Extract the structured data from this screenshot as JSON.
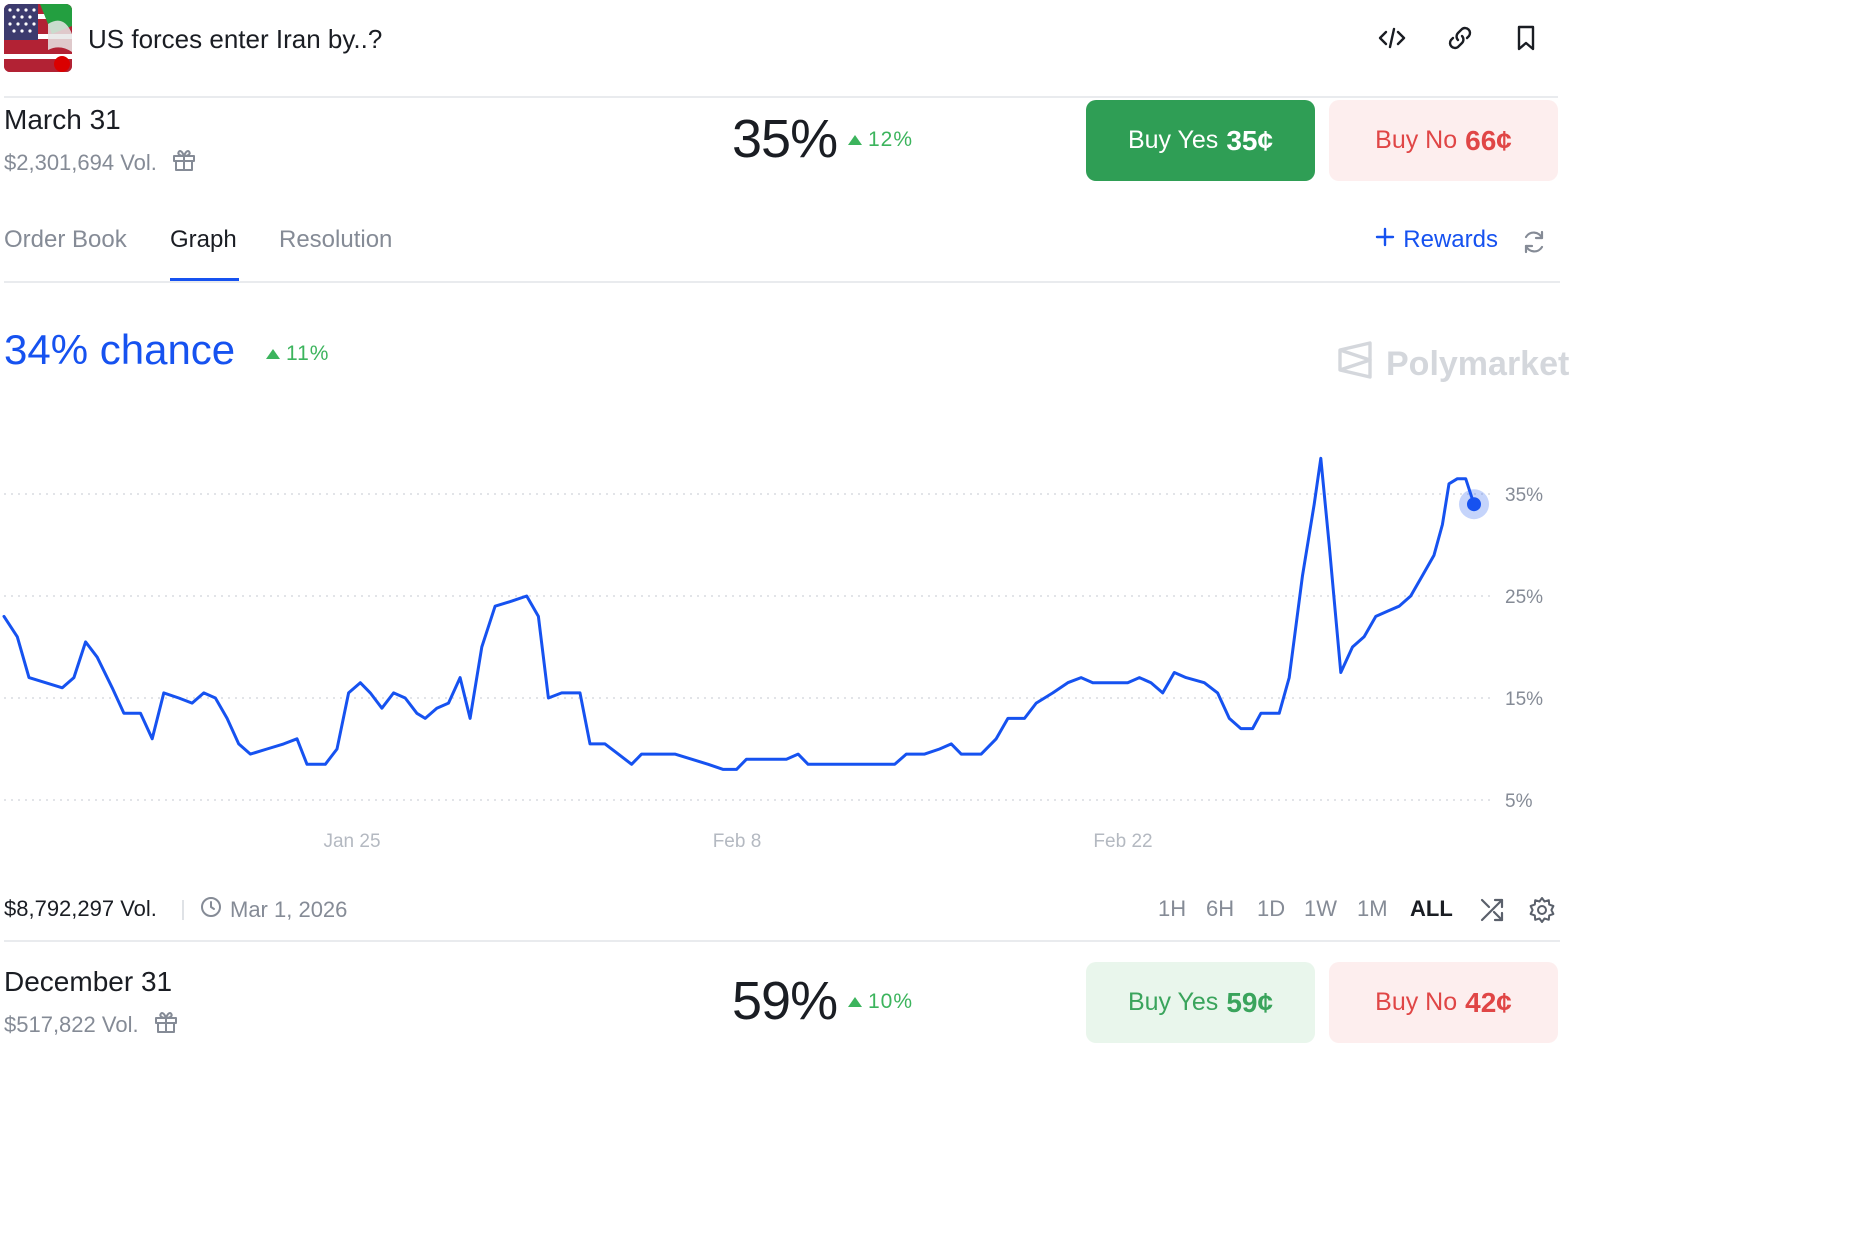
{
  "header": {
    "title": "US forces enter Iran by..?",
    "icons": [
      "embed-code-icon",
      "link-icon",
      "bookmark-icon"
    ]
  },
  "outcomes": [
    {
      "name": "March 31",
      "volume": "$2,301,694 Vol.",
      "probability": "35%",
      "delta": "12%",
      "buy_yes_label": "Buy Yes",
      "buy_yes_price": "35¢",
      "buy_no_label": "Buy No",
      "buy_no_price": "66¢"
    },
    {
      "name": "December 31",
      "volume": "$517,822 Vol.",
      "probability": "59%",
      "delta": "10%",
      "buy_yes_label": "Buy Yes",
      "buy_yes_price": "59¢",
      "buy_no_label": "Buy No",
      "buy_no_price": "42¢"
    }
  ],
  "tabs": [
    {
      "label": "Order Book",
      "active": false
    },
    {
      "label": "Graph",
      "active": true
    },
    {
      "label": "Resolution",
      "active": false
    }
  ],
  "rewards_label": "Rewards",
  "chart_header": {
    "chance": "34% chance",
    "delta": "11%",
    "watermark": "Polymarket"
  },
  "chart_data": {
    "type": "line",
    "x_ticks": [
      "Jan 25",
      "Feb 8",
      "Feb 22"
    ],
    "y_ticks": [
      "35%",
      "25%",
      "15%",
      "5%"
    ],
    "ylim": [
      3,
      40
    ],
    "grid": true,
    "color": "#1652f0",
    "series": [
      {
        "points": [
          [
            0,
            23
          ],
          [
            0.8,
            21
          ],
          [
            1.5,
            17
          ],
          [
            2.5,
            16.5
          ],
          [
            3.5,
            16
          ],
          [
            4.2,
            17
          ],
          [
            4.9,
            20.5
          ],
          [
            5.6,
            19
          ],
          [
            6.5,
            16
          ],
          [
            7.2,
            13.5
          ],
          [
            8.2,
            13.5
          ],
          [
            8.9,
            11
          ],
          [
            9.6,
            15.5
          ],
          [
            10.5,
            15
          ],
          [
            11.3,
            14.5
          ],
          [
            12,
            15.5
          ],
          [
            12.7,
            15
          ],
          [
            13.4,
            13
          ],
          [
            14.1,
            10.5
          ],
          [
            14.8,
            9.5
          ],
          [
            15.8,
            10
          ],
          [
            16.8,
            10.5
          ],
          [
            17.6,
            11
          ],
          [
            18.2,
            8.5
          ],
          [
            19.3,
            8.5
          ],
          [
            20,
            10
          ],
          [
            20.7,
            15.5
          ],
          [
            21.4,
            16.5
          ],
          [
            22,
            15.5
          ],
          [
            22.7,
            14
          ],
          [
            23.4,
            15.5
          ],
          [
            24.1,
            15
          ],
          [
            24.8,
            13.5
          ],
          [
            25.3,
            13
          ],
          [
            26,
            14
          ],
          [
            26.7,
            14.5
          ],
          [
            27.4,
            17
          ],
          [
            28,
            13
          ],
          [
            28.7,
            20
          ],
          [
            29.5,
            24
          ],
          [
            30.5,
            24.5
          ],
          [
            31.4,
            25
          ],
          [
            32.1,
            23
          ],
          [
            32.7,
            15
          ],
          [
            33.5,
            15.5
          ],
          [
            34.6,
            15.5
          ],
          [
            35.2,
            10.5
          ],
          [
            36.1,
            10.5
          ],
          [
            36.9,
            9.5
          ],
          [
            37.7,
            8.5
          ],
          [
            38.3,
            9.5
          ],
          [
            39.3,
            9.5
          ],
          [
            40.3,
            9.5
          ],
          [
            41.3,
            9
          ],
          [
            42.3,
            8.5
          ],
          [
            43.2,
            8
          ],
          [
            44,
            8
          ],
          [
            44.6,
            9
          ],
          [
            46,
            9
          ],
          [
            47,
            9
          ],
          [
            47.7,
            9.5
          ],
          [
            48.3,
            8.5
          ],
          [
            49.5,
            8.5
          ],
          [
            51,
            8.5
          ],
          [
            52.5,
            8.5
          ],
          [
            53.5,
            8.5
          ],
          [
            54.2,
            9.5
          ],
          [
            55.3,
            9.5
          ],
          [
            56.2,
            10
          ],
          [
            56.9,
            10.5
          ],
          [
            57.5,
            9.5
          ],
          [
            58.7,
            9.5
          ],
          [
            59.6,
            11
          ],
          [
            60.3,
            13
          ],
          [
            61.3,
            13
          ],
          [
            62,
            14.5
          ],
          [
            63,
            15.5
          ],
          [
            63.9,
            16.5
          ],
          [
            64.7,
            17
          ],
          [
            65.4,
            16.5
          ],
          [
            66.5,
            16.5
          ],
          [
            67.5,
            16.5
          ],
          [
            68.2,
            17
          ],
          [
            68.9,
            16.5
          ],
          [
            69.6,
            15.5
          ],
          [
            70.3,
            17.5
          ],
          [
            71,
            17
          ],
          [
            72.1,
            16.5
          ],
          [
            72.9,
            15.5
          ],
          [
            73.6,
            13
          ],
          [
            74.3,
            12
          ],
          [
            75,
            12
          ],
          [
            75.5,
            13.5
          ],
          [
            76.6,
            13.5
          ],
          [
            77.2,
            17
          ],
          [
            78,
            27
          ],
          [
            78.7,
            34
          ],
          [
            79.1,
            38.5
          ],
          [
            79.6,
            30
          ],
          [
            80.3,
            17.5
          ],
          [
            81,
            20
          ],
          [
            81.7,
            21
          ],
          [
            82.4,
            23
          ],
          [
            83.1,
            23.5
          ],
          [
            83.8,
            24
          ],
          [
            84.5,
            25
          ],
          [
            85.2,
            27
          ],
          [
            85.9,
            29
          ],
          [
            86.4,
            32
          ],
          [
            86.8,
            36
          ],
          [
            87.3,
            36.5
          ],
          [
            87.8,
            36.5
          ],
          [
            88.3,
            34
          ]
        ]
      }
    ]
  },
  "footer": {
    "volume": "$8,792,297 Vol.",
    "date": "Mar 1, 2026",
    "ranges": [
      "1H",
      "6H",
      "1D",
      "1W",
      "1M",
      "ALL"
    ],
    "active_range": "ALL"
  }
}
